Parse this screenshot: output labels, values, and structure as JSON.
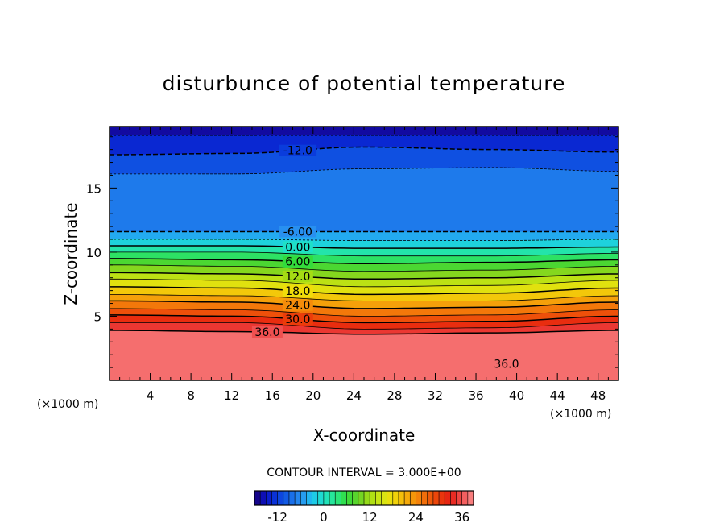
{
  "chart_data": {
    "type": "heatmap",
    "subtype": "filled-contour",
    "title": "disturbunce of potential temperature",
    "xlabel": "X-coordinate",
    "ylabel": "Z-coordinate",
    "x_unit_label": "(×1000 m)",
    "y_unit_label": "(×1000 m)",
    "xlim": [
      0,
      50
    ],
    "ylim": [
      0,
      19.8
    ],
    "x_ticks": [
      4,
      8,
      12,
      16,
      20,
      24,
      28,
      32,
      36,
      40,
      44,
      48
    ],
    "x_tick_labels": [
      "4",
      "8",
      "12",
      "16",
      "20",
      "24",
      "28",
      "32",
      "36",
      "40",
      "44",
      "48"
    ],
    "y_ticks": [
      5,
      10,
      15
    ],
    "y_tick_labels": [
      "5",
      "10",
      "15"
    ],
    "contour_interval_label": "CONTOUR INTERVAL = 3.000E+00",
    "colorbar": {
      "range": [
        -18,
        39
      ],
      "ticks": [
        -12,
        0,
        12,
        24,
        36
      ],
      "tick_labels": [
        "-12",
        "0",
        "12",
        "24",
        "36"
      ]
    },
    "contour_levels": [
      {
        "value": -15,
        "label": "",
        "z": [
          19.1,
          19.1,
          19.1,
          19.1,
          19.1
        ],
        "dashed": true
      },
      {
        "value": -12,
        "label": "-12.0",
        "z": [
          17.6,
          17.7,
          18.2,
          18.0,
          17.8
        ],
        "dashed": true,
        "label_x": 18.5
      },
      {
        "value": -9,
        "label": "",
        "z": [
          16.1,
          16.1,
          16.5,
          16.6,
          16.3
        ],
        "dashed": true
      },
      {
        "value": -6,
        "label": "-6.00",
        "z": [
          11.6,
          11.6,
          11.6,
          11.6,
          11.6
        ],
        "dashed": true,
        "label_x": 18.5
      },
      {
        "value": -3,
        "label": "",
        "z": [
          11.0,
          11.0,
          10.9,
          10.9,
          11.0
        ],
        "dashed": true
      },
      {
        "value": 0,
        "label": "0.00",
        "z": [
          10.5,
          10.5,
          10.3,
          10.3,
          10.4
        ],
        "dashed": false,
        "label_x": 18.5
      },
      {
        "value": 3,
        "label": "",
        "z": [
          10.0,
          10.0,
          9.7,
          9.7,
          9.9
        ],
        "dashed": false
      },
      {
        "value": 6,
        "label": "6.00",
        "z": [
          9.5,
          9.4,
          9.1,
          9.2,
          9.4
        ],
        "dashed": false,
        "label_x": 18.5
      },
      {
        "value": 9,
        "label": "",
        "z": [
          9.0,
          8.9,
          8.5,
          8.6,
          8.9
        ],
        "dashed": false
      },
      {
        "value": 12,
        "label": "12.0",
        "z": [
          8.4,
          8.3,
          7.9,
          8.0,
          8.3
        ],
        "dashed": false,
        "label_x": 18.5
      },
      {
        "value": 15,
        "label": "",
        "z": [
          7.9,
          7.8,
          7.3,
          7.4,
          7.8
        ],
        "dashed": false
      },
      {
        "value": 18,
        "label": "18.0",
        "z": [
          7.3,
          7.2,
          6.7,
          6.8,
          7.2
        ],
        "dashed": false,
        "label_x": 18.5
      },
      {
        "value": 21,
        "label": "",
        "z": [
          6.7,
          6.6,
          6.2,
          6.2,
          6.6
        ],
        "dashed": false
      },
      {
        "value": 24,
        "label": "24.0",
        "z": [
          6.2,
          6.1,
          5.6,
          5.7,
          6.1
        ],
        "dashed": false,
        "label_x": 18.5
      },
      {
        "value": 27,
        "label": "",
        "z": [
          5.6,
          5.5,
          5.0,
          5.1,
          5.5
        ],
        "dashed": false
      },
      {
        "value": 30,
        "label": "30.0",
        "z": [
          5.1,
          5.0,
          4.5,
          4.6,
          5.0
        ],
        "dashed": false,
        "label_x": 18.5
      },
      {
        "value": 33,
        "label": "",
        "z": [
          4.5,
          4.5,
          4.0,
          4.1,
          4.5
        ],
        "dashed": false
      },
      {
        "value": 36,
        "label": "36.0",
        "z": [
          3.9,
          3.8,
          3.6,
          3.7,
          3.9
        ],
        "dashed": false,
        "label_x": 15.5
      }
    ],
    "secondary_labels": [
      {
        "label": "36.0",
        "x": 39,
        "z": 1.3
      }
    ],
    "color_stops": [
      {
        "v": -18,
        "c": "#1a0078"
      },
      {
        "v": -15,
        "c": "#0a14c8"
      },
      {
        "v": -12,
        "c": "#0a3cdc"
      },
      {
        "v": -9,
        "c": "#1464e6"
      },
      {
        "v": -6,
        "c": "#2890f0"
      },
      {
        "v": -3,
        "c": "#1ec3f0"
      },
      {
        "v": 0,
        "c": "#1ee1c8"
      },
      {
        "v": 3,
        "c": "#28e68c"
      },
      {
        "v": 6,
        "c": "#32dc3c"
      },
      {
        "v": 9,
        "c": "#64d228"
      },
      {
        "v": 12,
        "c": "#a5dc14"
      },
      {
        "v": 15,
        "c": "#d2e614"
      },
      {
        "v": 18,
        "c": "#f0dc0a"
      },
      {
        "v": 21,
        "c": "#f5b40a"
      },
      {
        "v": 24,
        "c": "#f58c0a"
      },
      {
        "v": 27,
        "c": "#f0640a"
      },
      {
        "v": 30,
        "c": "#eb3c0a"
      },
      {
        "v": 33,
        "c": "#e61e14"
      },
      {
        "v": 36,
        "c": "#f05050"
      },
      {
        "v": 39,
        "c": "#fa8c8c"
      }
    ]
  }
}
